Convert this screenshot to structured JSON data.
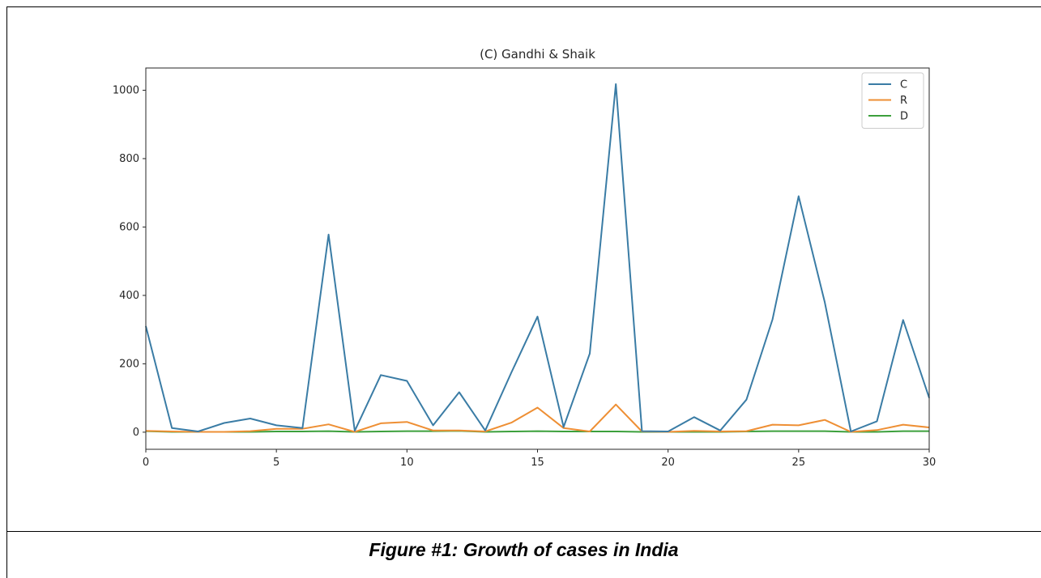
{
  "caption": "Figure #1: Growth of cases in India",
  "chart_data": {
    "type": "line",
    "title": "(C) Gandhi & Shaik",
    "xlabel": "",
    "ylabel": "",
    "xlim": [
      0,
      30
    ],
    "ylim": [
      -50,
      1065
    ],
    "xticks": [
      0,
      5,
      10,
      15,
      20,
      25,
      30
    ],
    "yticks": [
      0,
      200,
      400,
      600,
      800,
      1000
    ],
    "grid": false,
    "legend_position": "top-right",
    "x": [
      0,
      1,
      2,
      3,
      4,
      5,
      6,
      7,
      8,
      9,
      10,
      11,
      12,
      13,
      14,
      15,
      16,
      17,
      18,
      19,
      20,
      21,
      22,
      23,
      24,
      25,
      26,
      27,
      28,
      29,
      30
    ],
    "series": [
      {
        "name": "C",
        "color": "#3a7ca5",
        "values": [
          310,
          12,
          2,
          27,
          40,
          20,
          12,
          578,
          4,
          167,
          150,
          20,
          117,
          5,
          175,
          338,
          15,
          230,
          1018,
          3,
          2,
          44,
          5,
          95,
          330,
          690,
          380,
          2,
          32,
          328,
          100
        ]
      },
      {
        "name": "R",
        "color": "#ee8f34",
        "values": [
          4,
          2,
          1,
          1,
          3,
          10,
          10,
          23,
          1,
          26,
          30,
          5,
          5,
          2,
          28,
          72,
          12,
          2,
          81,
          2,
          1,
          4,
          2,
          3,
          22,
          20,
          36,
          1,
          6,
          22,
          14
        ]
      },
      {
        "name": "D",
        "color": "#3ca03c",
        "values": [
          3,
          1,
          1,
          1,
          1,
          2,
          2,
          3,
          1,
          2,
          3,
          3,
          4,
          1,
          2,
          3,
          2,
          2,
          2,
          1,
          1,
          1,
          1,
          2,
          3,
          3,
          3,
          1,
          1,
          3,
          3
        ]
      }
    ]
  }
}
